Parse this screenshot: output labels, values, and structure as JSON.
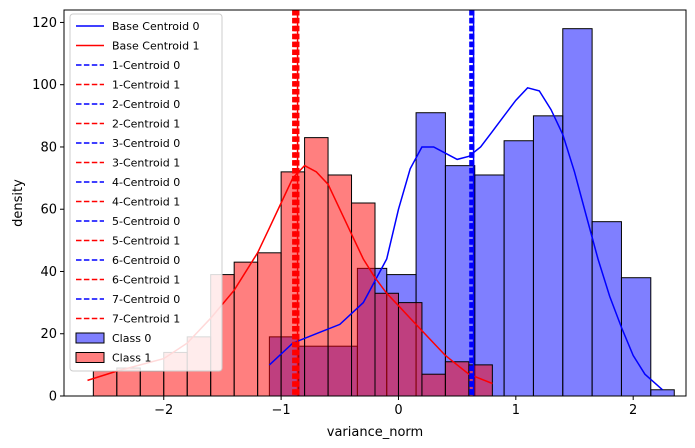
{
  "chart_data": {
    "type": "bar",
    "title": "",
    "xlabel": "variance_norm",
    "ylabel": "density",
    "xlim": [
      -2.85,
      2.45
    ],
    "ylim": [
      0,
      124
    ],
    "xticks": [
      -2,
      -1,
      0,
      1,
      2
    ],
    "yticks": [
      0,
      20,
      40,
      60,
      80,
      100,
      120
    ],
    "grid": false,
    "legend_position": "top-left",
    "hist_series": [
      {
        "name": "Class 0",
        "color": "#0000ff",
        "bin_edges": [
          -1.1,
          -0.85,
          -0.6,
          -0.35,
          -0.1,
          0.15,
          0.4,
          0.65,
          0.9,
          1.15,
          1.4,
          1.65,
          1.9,
          2.15,
          2.35
        ],
        "counts": [
          19,
          16,
          16,
          41,
          39,
          91,
          74,
          71,
          82,
          90,
          118,
          56,
          38,
          2
        ],
        "kde": [
          [
            -1.1,
            10
          ],
          [
            -0.9,
            17
          ],
          [
            -0.7,
            20
          ],
          [
            -0.5,
            23
          ],
          [
            -0.3,
            30
          ],
          [
            -0.1,
            44
          ],
          [
            0.0,
            60
          ],
          [
            0.1,
            73
          ],
          [
            0.2,
            80
          ],
          [
            0.3,
            80
          ],
          [
            0.4,
            78
          ],
          [
            0.5,
            76
          ],
          [
            0.6,
            77
          ],
          [
            0.7,
            80
          ],
          [
            0.8,
            85
          ],
          [
            0.9,
            90
          ],
          [
            1.0,
            95
          ],
          [
            1.1,
            99
          ],
          [
            1.2,
            98
          ],
          [
            1.3,
            92
          ],
          [
            1.4,
            84
          ],
          [
            1.5,
            72
          ],
          [
            1.6,
            58
          ],
          [
            1.7,
            44
          ],
          [
            1.8,
            32
          ],
          [
            1.9,
            22
          ],
          [
            2.0,
            13
          ],
          [
            2.1,
            7
          ],
          [
            2.25,
            2
          ]
        ]
      },
      {
        "name": "Class 1",
        "color": "#ff0000",
        "bin_edges": [
          -2.6,
          -2.4,
          -2.2,
          -2.0,
          -1.8,
          -1.6,
          -1.4,
          -1.2,
          -1.0,
          -0.8,
          -0.6,
          -0.4,
          -0.2,
          0.0,
          0.2,
          0.4,
          0.6,
          0.8
        ],
        "counts": [
          8,
          9,
          8,
          14,
          19,
          39,
          43,
          46,
          72,
          83,
          71,
          62,
          33,
          30,
          7,
          11,
          10
        ],
        "kde": [
          [
            -2.65,
            5
          ],
          [
            -2.4,
            8
          ],
          [
            -2.2,
            10
          ],
          [
            -2.0,
            12
          ],
          [
            -1.8,
            17
          ],
          [
            -1.6,
            25
          ],
          [
            -1.4,
            34
          ],
          [
            -1.2,
            46
          ],
          [
            -1.1,
            54
          ],
          [
            -1.0,
            62
          ],
          [
            -0.9,
            70
          ],
          [
            -0.8,
            74
          ],
          [
            -0.7,
            72
          ],
          [
            -0.6,
            68
          ],
          [
            -0.5,
            60
          ],
          [
            -0.4,
            52
          ],
          [
            -0.3,
            44
          ],
          [
            -0.2,
            38
          ],
          [
            -0.1,
            33
          ],
          [
            0.0,
            29
          ],
          [
            0.1,
            25
          ],
          [
            0.2,
            21
          ],
          [
            0.3,
            17
          ],
          [
            0.4,
            13
          ],
          [
            0.5,
            10
          ],
          [
            0.6,
            7
          ],
          [
            0.8,
            4
          ]
        ]
      }
    ],
    "centroid_lines": [
      {
        "name": "Base Centroid 0",
        "x": 0.64,
        "color": "#0000ff",
        "style": "solid"
      },
      {
        "name": "Base Centroid 1",
        "x": -0.86,
        "color": "#ff0000",
        "style": "solid"
      },
      {
        "name": "1-Centroid 0",
        "x": 0.62,
        "color": "#0000ff",
        "style": "dashed"
      },
      {
        "name": "1-Centroid 1",
        "x": -0.9,
        "color": "#ff0000",
        "style": "dashed"
      },
      {
        "name": "2-Centroid 0",
        "x": 0.63,
        "color": "#0000ff",
        "style": "dashed"
      },
      {
        "name": "2-Centroid 1",
        "x": -0.88,
        "color": "#ff0000",
        "style": "dashed"
      },
      {
        "name": "3-Centroid 0",
        "x": 0.61,
        "color": "#0000ff",
        "style": "dashed"
      },
      {
        "name": "3-Centroid 1",
        "x": -0.87,
        "color": "#ff0000",
        "style": "dashed"
      },
      {
        "name": "4-Centroid 0",
        "x": 0.64,
        "color": "#0000ff",
        "style": "dashed"
      },
      {
        "name": "4-Centroid 1",
        "x": -0.85,
        "color": "#ff0000",
        "style": "dashed"
      },
      {
        "name": "5-Centroid 0",
        "x": 0.62,
        "color": "#0000ff",
        "style": "dashed"
      },
      {
        "name": "5-Centroid 1",
        "x": -0.89,
        "color": "#ff0000",
        "style": "dashed"
      },
      {
        "name": "6-Centroid 0",
        "x": 0.63,
        "color": "#0000ff",
        "style": "dashed"
      },
      {
        "name": "6-Centroid 1",
        "x": -0.86,
        "color": "#ff0000",
        "style": "dashed"
      },
      {
        "name": "7-Centroid 0",
        "x": 0.61,
        "color": "#0000ff",
        "style": "dashed"
      },
      {
        "name": "7-Centroid 1",
        "x": -0.88,
        "color": "#ff0000",
        "style": "dashed"
      }
    ],
    "legend": [
      {
        "label": "Base Centroid 0",
        "kind": "solid",
        "color": "#0000ff"
      },
      {
        "label": "Base Centroid 1",
        "kind": "solid",
        "color": "#ff0000"
      },
      {
        "label": "1-Centroid 0",
        "kind": "dashed",
        "color": "#0000ff"
      },
      {
        "label": "1-Centroid 1",
        "kind": "dashed",
        "color": "#ff0000"
      },
      {
        "label": "2-Centroid 0",
        "kind": "dashed",
        "color": "#0000ff"
      },
      {
        "label": "2-Centroid 1",
        "kind": "dashed",
        "color": "#ff0000"
      },
      {
        "label": "3-Centroid 0",
        "kind": "dashed",
        "color": "#0000ff"
      },
      {
        "label": "3-Centroid 1",
        "kind": "dashed",
        "color": "#ff0000"
      },
      {
        "label": "4-Centroid 0",
        "kind": "dashed",
        "color": "#0000ff"
      },
      {
        "label": "4-Centroid 1",
        "kind": "dashed",
        "color": "#ff0000"
      },
      {
        "label": "5-Centroid 0",
        "kind": "dashed",
        "color": "#0000ff"
      },
      {
        "label": "5-Centroid 1",
        "kind": "dashed",
        "color": "#ff0000"
      },
      {
        "label": "6-Centroid 0",
        "kind": "dashed",
        "color": "#0000ff"
      },
      {
        "label": "6-Centroid 1",
        "kind": "dashed",
        "color": "#ff0000"
      },
      {
        "label": "7-Centroid 0",
        "kind": "dashed",
        "color": "#0000ff"
      },
      {
        "label": "7-Centroid 1",
        "kind": "dashed",
        "color": "#ff0000"
      },
      {
        "label": "Class 0",
        "kind": "patch",
        "color": "#0000ff"
      },
      {
        "label": "Class 1",
        "kind": "patch",
        "color": "#ff0000"
      }
    ]
  }
}
